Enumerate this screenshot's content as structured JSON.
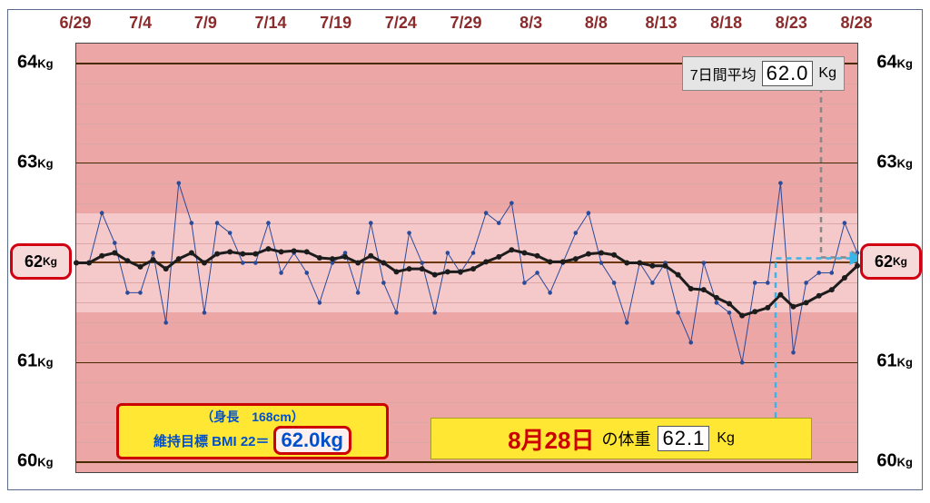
{
  "chart": {
    "type": "line",
    "ylim": [
      59.9,
      64.2
    ],
    "yticks_major": [
      60,
      61,
      62,
      63,
      64
    ],
    "yticks_minor_step": 0.2,
    "unit_suffix": "Kg",
    "date_labels": [
      "6/29",
      "7/4",
      "7/9",
      "7/14",
      "7/19",
      "7/24",
      "7/29",
      "8/3",
      "8/8",
      "8/13",
      "8/18",
      "8/23",
      "8/28"
    ],
    "target_y": 62.0,
    "colors": {
      "plot_bg_safe": "#f5c9c9",
      "plot_bg_warn": "#eda6a6",
      "minor_grid": "#dba6a6",
      "major_grid": "#4a2a00",
      "target_line": "#6b3600",
      "date_label": "#8b2b2b",
      "raw_line": "#2a4a9a",
      "raw_marker": "#2a4a9a",
      "avg_line": "#1c1c1c",
      "avg_marker": "#1c1c1c",
      "callout_border": "#d00012",
      "callout_fill": "#f6dada",
      "accent_yellow": "#ffe733",
      "accent_red": "#cc0000",
      "accent_blue": "#0050cc",
      "dash_grey": "#888888",
      "dash_cyan": "#39b6e9"
    },
    "safe_band": {
      "y_lo": 61.5,
      "y_hi": 62.5
    },
    "raw_series": [
      62.0,
      62.0,
      62.5,
      62.2,
      61.7,
      61.7,
      62.1,
      61.4,
      62.8,
      62.4,
      61.5,
      62.4,
      62.3,
      62.0,
      62.0,
      62.4,
      61.9,
      62.1,
      61.9,
      61.6,
      62.0,
      62.1,
      61.7,
      62.4,
      61.8,
      61.5,
      62.3,
      62.0,
      61.5,
      62.1,
      61.9,
      62.1,
      62.5,
      62.4,
      62.6,
      61.8,
      61.9,
      61.7,
      62.0,
      62.3,
      62.5,
      62.0,
      61.8,
      61.4,
      62.0,
      61.8,
      62.0,
      61.5,
      61.2,
      62.0,
      61.6,
      61.5,
      61.0,
      61.8,
      61.8,
      62.8,
      61.1,
      61.8,
      61.9,
      61.9,
      62.4,
      62.1
    ],
    "avg_series": [
      62.0,
      62.0,
      62.07,
      62.1,
      62.02,
      61.96,
      62.03,
      61.94,
      62.04,
      62.1,
      62.0,
      62.09,
      62.11,
      62.09,
      62.09,
      62.14,
      62.11,
      62.12,
      62.11,
      62.05,
      62.04,
      62.06,
      62.0,
      62.07,
      62.0,
      61.91,
      61.94,
      61.94,
      61.88,
      61.91,
      61.91,
      61.94,
      62.01,
      62.06,
      62.13,
      62.1,
      62.07,
      62.01,
      62.01,
      62.04,
      62.09,
      62.1,
      62.08,
      62.0,
      62.0,
      61.97,
      61.97,
      61.88,
      61.74,
      61.73,
      61.65,
      61.59,
      61.47,
      61.51,
      61.55,
      61.68,
      61.56,
      61.6,
      61.67,
      61.73,
      61.85,
      61.97
    ],
    "line_widths": {
      "raw": 1.0,
      "avg": 3.0
    },
    "marker_radius": {
      "raw": 2.3,
      "avg": 3.0
    }
  },
  "avg_box": {
    "label": "7日間平均",
    "value": "62.0",
    "unit": "Kg"
  },
  "bmi_box": {
    "height_label": "（身長　168cm）",
    "bmi_label": "維持目標 BMI 22＝",
    "value": "62.0kg"
  },
  "cur_box": {
    "date": "8月28日",
    "label_suffix": "の体重",
    "value": "62.1",
    "unit": "Kg"
  },
  "y_callout": {
    "label": "62",
    "unit": "Kg"
  }
}
